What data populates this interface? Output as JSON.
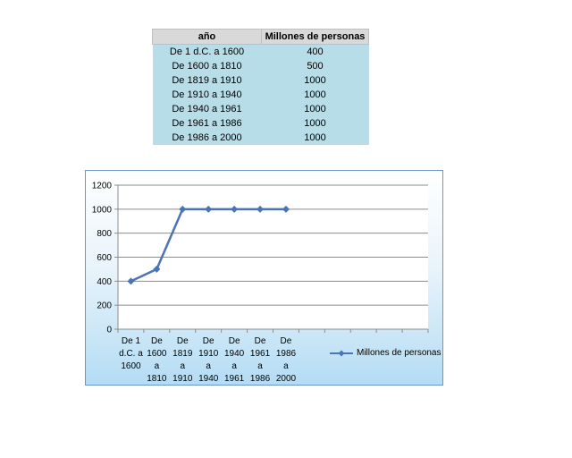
{
  "table": {
    "headers": [
      "año",
      "Millones de personas"
    ],
    "rows": [
      [
        "De 1 d.C. a 1600",
        "400"
      ],
      [
        "De 1600 a 1810",
        "500"
      ],
      [
        "De 1819 a 1910",
        "1000"
      ],
      [
        "De 1910 a 1940",
        "1000"
      ],
      [
        "De 1940 a 1961",
        "1000"
      ],
      [
        "De 1961 a 1986",
        "1000"
      ],
      [
        "De 1986 a 2000",
        "1000"
      ]
    ]
  },
  "chart_data": {
    "type": "line",
    "categories": [
      [
        "De 1",
        "d.C. a",
        "1600"
      ],
      [
        "De",
        "1600",
        "a",
        "1810"
      ],
      [
        "De",
        "1819",
        "a",
        "1910"
      ],
      [
        "De",
        "1910",
        "a",
        "1940"
      ],
      [
        "De",
        "1940",
        "a",
        "1961"
      ],
      [
        "De",
        "1961",
        "a",
        "1986"
      ],
      [
        "De",
        "1986",
        "a",
        "2000"
      ]
    ],
    "series": [
      {
        "name": "Millones de personas",
        "values": [
          400,
          500,
          1000,
          1000,
          1000,
          1000,
          1000
        ],
        "color": "#4a74b4"
      }
    ],
    "ylim": [
      0,
      1200
    ],
    "yticks": [
      0,
      200,
      400,
      600,
      800,
      1000,
      1200
    ],
    "x_slots": 12,
    "grid": "horizontal",
    "legend_position": "right",
    "plot_background": "#ffffff",
    "frame_color": "#6b98c8"
  }
}
